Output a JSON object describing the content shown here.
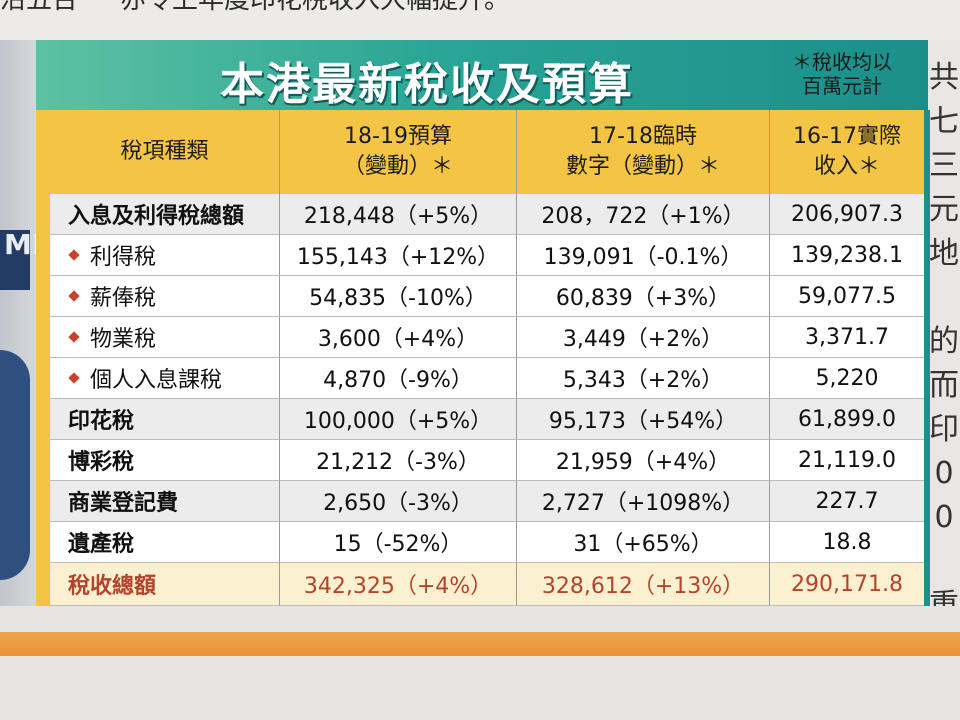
{
  "top_text": [
    "沿五台",
    "亦令上年度印花稅收入大幅提升。"
  ],
  "right_text": [
    "共",
    "七",
    "三",
    "元",
    "地",
    "",
    "的",
    "而",
    "印",
    "0",
    "0",
    "",
    "重"
  ],
  "photo_text": "MI",
  "title": "本港最新稅收及預算",
  "note": [
    "＊稅收均以",
    "百萬元計"
  ],
  "header": {
    "col0": "稅項種類",
    "col1": [
      "18-19預算",
      "（變動）＊"
    ],
    "col2": [
      "17-18臨時",
      "數字（變動）＊"
    ],
    "col3": [
      "16-17實際",
      "收入＊"
    ]
  },
  "rows": [
    {
      "name": "入息及利得稅總額",
      "c1": "218,448（+5%）",
      "c2": "208，722（+1%）",
      "c3": "206,907.3"
    },
    {
      "name": "利得稅",
      "c1": "155,143（+12%）",
      "c2": "139,091（-0.1%）",
      "c3": "139,238.1"
    },
    {
      "name": "薪俸稅",
      "c1": "54,835（-10%）",
      "c2": "60,839（+3%）",
      "c3": "59,077.5"
    },
    {
      "name": "物業稅",
      "c1": "3,600（+4%）",
      "c2": "3,449（+2%）",
      "c3": "3,371.7"
    },
    {
      "name": "個人入息課稅",
      "c1": "4,870（-9%）",
      "c2": "5,343（+2%）",
      "c3": "5,220"
    },
    {
      "name": "印花稅",
      "c1": "100,000（+5%）",
      "c2": "95,173（+54%）",
      "c3": "61,899.0"
    },
    {
      "name": "博彩稅",
      "c1": "21,212（-3%）",
      "c2": "21,959（+4%）",
      "c3": "21,119.0"
    },
    {
      "name": "商業登記費",
      "c1": "2,650（-3%）",
      "c2": "2,727（+1098%）",
      "c3": "227.7"
    },
    {
      "name": "遺產稅",
      "c1": "15（-52%）",
      "c2": "31（+65%）",
      "c3": "18.8"
    },
    {
      "name": "稅收總額",
      "c1": "342,325（+4%）",
      "c2": "328,612（+13%）",
      "c3": "290,171.8"
    }
  ]
}
